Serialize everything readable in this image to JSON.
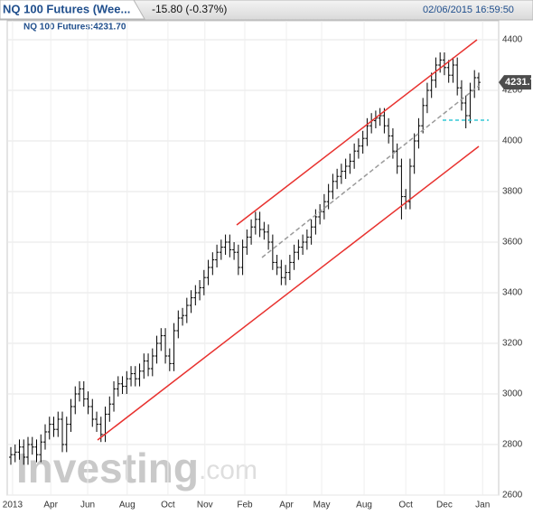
{
  "header": {
    "title": "NQ 100 Futures (Wee...",
    "change": "-15.80 (-0.37%)",
    "datetime": "02/06/2015 16:59:50",
    "legend": "NQ 100 Futures:4231.70",
    "watermark_main": "Investing",
    "watermark_suffix": ".com"
  },
  "chart_data": {
    "type": "ohlc",
    "color": "#000000",
    "grid": true,
    "last_price": 4231.7,
    "xlim": [
      -0.84,
      113.64
    ],
    "ylim": [
      2600,
      4400
    ],
    "yticks": [
      2600,
      2800,
      3000,
      3200,
      3400,
      3600,
      3800,
      4000,
      4200,
      4400
    ],
    "xticks": [
      {
        "value": 0.4,
        "label": "2013"
      },
      {
        "value": 9.3,
        "label": "Apr"
      },
      {
        "value": 17.9,
        "label": "Jun"
      },
      {
        "value": 27.1,
        "label": "Aug"
      },
      {
        "value": 36.6,
        "label": "Oct"
      },
      {
        "value": 45.2,
        "label": "Nov"
      },
      {
        "value": 54.5,
        "label": "Feb"
      },
      {
        "value": 64.2,
        "label": "Apr"
      },
      {
        "value": 72.4,
        "label": "May"
      },
      {
        "value": 82.3,
        "label": "Aug"
      },
      {
        "value": 92.0,
        "label": "Oct"
      },
      {
        "value": 101.0,
        "label": "Dec"
      },
      {
        "value": 109.9,
        "label": "Jan"
      }
    ],
    "open": [
      2750,
      2760,
      2770,
      2790,
      2750,
      2800,
      2790,
      2760,
      2810,
      2850,
      2880,
      2860,
      2900,
      2800,
      2880,
      2950,
      3000,
      3020,
      2980,
      2950,
      2900,
      2880,
      2840,
      2920,
      2960,
      3020,
      3040,
      3030,
      3060,
      3080,
      3060,
      3090,
      3130,
      3100,
      3150,
      3200,
      3230,
      3150,
      3120,
      3250,
      3300,
      3310,
      3350,
      3380,
      3400,
      3420,
      3460,
      3500,
      3530,
      3560,
      3580,
      3600,
      3570,
      3560,
      3500,
      3580,
      3620,
      3660,
      3690,
      3650,
      3640,
      3600,
      3520,
      3500,
      3460,
      3480,
      3520,
      3560,
      3580,
      3600,
      3620,
      3660,
      3700,
      3720,
      3760,
      3800,
      3840,
      3860,
      3880,
      3900,
      3920,
      3960,
      3980,
      4010,
      4060,
      4080,
      4090,
      4100,
      4060,
      4020,
      3960,
      3900,
      3780,
      3760,
      3900,
      4000,
      4060,
      4140,
      4200,
      4240,
      4300,
      4320,
      4290,
      4260,
      4300,
      4210,
      4150,
      4100,
      4200,
      4250
    ],
    "high": [
      2790,
      2800,
      2820,
      2820,
      2830,
      2830,
      2820,
      2840,
      2880,
      2910,
      2910,
      2930,
      2930,
      2910,
      2980,
      3030,
      3050,
      3050,
      3010,
      2980,
      2930,
      2910,
      2950,
      2990,
      3050,
      3070,
      3070,
      3090,
      3110,
      3110,
      3120,
      3160,
      3160,
      3180,
      3230,
      3260,
      3260,
      3180,
      3280,
      3330,
      3340,
      3380,
      3410,
      3430,
      3450,
      3490,
      3530,
      3560,
      3590,
      3610,
      3630,
      3630,
      3600,
      3590,
      3610,
      3650,
      3690,
      3720,
      3720,
      3680,
      3670,
      3630,
      3550,
      3530,
      3510,
      3550,
      3590,
      3610,
      3630,
      3650,
      3690,
      3730,
      3750,
      3790,
      3830,
      3870,
      3890,
      3910,
      3930,
      3950,
      3990,
      4010,
      4040,
      4090,
      4110,
      4120,
      4130,
      4130,
      4090,
      4050,
      3990,
      3930,
      3810,
      3930,
      4030,
      4090,
      4170,
      4230,
      4270,
      4330,
      4350,
      4350,
      4320,
      4330,
      4330,
      4240,
      4180,
      4230,
      4280,
      4270
    ],
    "low": [
      2720,
      2730,
      2740,
      2720,
      2720,
      2760,
      2730,
      2730,
      2780,
      2820,
      2830,
      2830,
      2770,
      2770,
      2850,
      2920,
      2970,
      2950,
      2920,
      2870,
      2850,
      2810,
      2810,
      2890,
      2930,
      2990,
      3000,
      3000,
      3030,
      3030,
      3030,
      3060,
      3070,
      3070,
      3120,
      3170,
      3120,
      3090,
      3090,
      3220,
      3270,
      3280,
      3320,
      3350,
      3370,
      3390,
      3430,
      3470,
      3500,
      3530,
      3550,
      3540,
      3530,
      3470,
      3470,
      3550,
      3590,
      3630,
      3620,
      3610,
      3570,
      3490,
      3470,
      3430,
      3430,
      3450,
      3490,
      3530,
      3550,
      3570,
      3590,
      3630,
      3670,
      3690,
      3730,
      3770,
      3810,
      3830,
      3850,
      3870,
      3890,
      3930,
      3950,
      3980,
      4030,
      4050,
      4060,
      4030,
      3990,
      3930,
      3870,
      3690,
      3730,
      3730,
      3870,
      3970,
      4030,
      4110,
      4170,
      4210,
      4270,
      4260,
      4230,
      4230,
      4180,
      4120,
      4050,
      4070,
      4170,
      4200
    ],
    "close": [
      2760,
      2770,
      2790,
      2750,
      2800,
      2790,
      2760,
      2810,
      2850,
      2880,
      2860,
      2900,
      2800,
      2880,
      2950,
      3000,
      3020,
      2980,
      2950,
      2900,
      2880,
      2840,
      2920,
      2960,
      3020,
      3040,
      3030,
      3060,
      3080,
      3060,
      3090,
      3130,
      3100,
      3150,
      3200,
      3230,
      3150,
      3120,
      3250,
      3300,
      3310,
      3350,
      3380,
      3400,
      3420,
      3460,
      3500,
      3530,
      3560,
      3580,
      3600,
      3570,
      3560,
      3500,
      3580,
      3620,
      3660,
      3690,
      3650,
      3640,
      3600,
      3520,
      3500,
      3460,
      3480,
      3520,
      3560,
      3580,
      3600,
      3620,
      3660,
      3700,
      3720,
      3760,
      3800,
      3840,
      3860,
      3880,
      3900,
      3920,
      3960,
      3980,
      4010,
      4060,
      4080,
      4090,
      4100,
      4060,
      4020,
      3960,
      3900,
      3780,
      3760,
      3900,
      4000,
      4060,
      4140,
      4200,
      4240,
      4300,
      4320,
      4290,
      4260,
      4300,
      4210,
      4150,
      4100,
      4200,
      4250,
      4231.7
    ]
  }
}
